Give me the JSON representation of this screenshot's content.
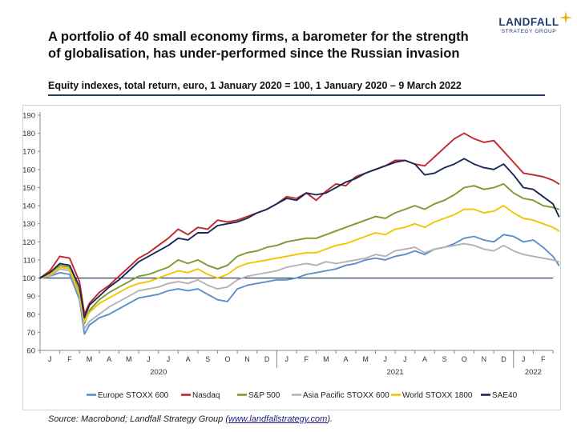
{
  "header": {
    "title": "A portfolio of 40 small economy firms, a barometer for the strength of globalisation, has under-performed since the Russian invasion",
    "subtitle": "Equity indexes, total return, euro, 1 January 2020 = 100, 1 January 2020 – 9 March 2022"
  },
  "logo": {
    "name": "LANDFALL",
    "tagline": "STRATEGY GROUP",
    "accent_color": "#e0b31c",
    "brand_color": "#1f3a6b"
  },
  "footer": {
    "source_prefix": "Source: Macrobond; Landfall Strategy Group (",
    "source_url": "www.landfallstrategy.com",
    "source_suffix": ")."
  },
  "chart_data": {
    "type": "line",
    "title": "Equity indexes, total return, euro, 1 January 2020 = 100",
    "xlabel": "",
    "ylabel": "",
    "ylim": [
      60,
      190
    ],
    "yticks": [
      60,
      70,
      80,
      90,
      100,
      110,
      120,
      130,
      140,
      150,
      160,
      170,
      180,
      190
    ],
    "baseline": 100,
    "grid": false,
    "legend_position": "bottom",
    "x": [
      0,
      0.5,
      1,
      1.5,
      2,
      2.25,
      2.5,
      3,
      3.5,
      4,
      4.5,
      5,
      5.5,
      6,
      6.5,
      7,
      7.5,
      8,
      8.5,
      9,
      9.5,
      10,
      10.5,
      11,
      11.5,
      12,
      12.5,
      13,
      13.5,
      14,
      14.5,
      15,
      15.5,
      16,
      16.5,
      17,
      17.5,
      18,
      18.5,
      19,
      19.5,
      20,
      20.5,
      21,
      21.5,
      22,
      22.5,
      23,
      23.5,
      24,
      24.5,
      25,
      25.5,
      26,
      26.3
    ],
    "x_months": [
      "J",
      "F",
      "M",
      "A",
      "M",
      "J",
      "J",
      "A",
      "S",
      "O",
      "N",
      "D",
      "J",
      "F",
      "M",
      "A",
      "M",
      "J",
      "J",
      "A",
      "S",
      "O",
      "N",
      "D",
      "J",
      "F"
    ],
    "x_years": [
      {
        "label": "2020",
        "at": 6
      },
      {
        "label": "2021",
        "at": 18
      },
      {
        "label": "2022",
        "at": 25
      }
    ],
    "series": [
      {
        "name": "Europe STOXX 600",
        "color": "#5b8fc9",
        "values": [
          100,
          101,
          103,
          102,
          88,
          69,
          74,
          78,
          80,
          83,
          86,
          89,
          90,
          91,
          93,
          94,
          93,
          94,
          91,
          88,
          87,
          94,
          96,
          97,
          98,
          99,
          99,
          100,
          102,
          103,
          104,
          105,
          107,
          108,
          110,
          111,
          110,
          112,
          113,
          115,
          113,
          116,
          117,
          119,
          122,
          123,
          121,
          120,
          124,
          123,
          120,
          121,
          117,
          112,
          107
        ]
      },
      {
        "name": "Nasdaq",
        "color": "#c0272d",
        "values": [
          100,
          104,
          112,
          111,
          98,
          80,
          86,
          92,
          96,
          101,
          106,
          111,
          114,
          118,
          122,
          127,
          124,
          128,
          127,
          132,
          131,
          132,
          134,
          136,
          138,
          141,
          145,
          144,
          147,
          143,
          148,
          152,
          151,
          156,
          158,
          160,
          162,
          165,
          165,
          163,
          162,
          167,
          172,
          177,
          180,
          177,
          175,
          176,
          170,
          164,
          158,
          157,
          156,
          154,
          152
        ]
      },
      {
        "name": "S&P 500",
        "color": "#7a9a2e",
        "values": [
          100,
          102,
          107,
          106,
          92,
          75,
          82,
          88,
          92,
          95,
          98,
          101,
          102,
          104,
          106,
          110,
          108,
          110,
          107,
          105,
          107,
          112,
          114,
          115,
          117,
          118,
          120,
          121,
          122,
          122,
          124,
          126,
          128,
          130,
          132,
          134,
          133,
          136,
          138,
          140,
          138,
          141,
          143,
          146,
          150,
          151,
          149,
          150,
          152,
          147,
          144,
          143,
          140,
          139,
          138
        ]
      },
      {
        "name": "Asia Pacific STOXX 600",
        "color": "#b3b3b3",
        "values": [
          100,
          101,
          105,
          104,
          90,
          72,
          76,
          80,
          84,
          87,
          90,
          93,
          94,
          95,
          97,
          98,
          97,
          99,
          96,
          94,
          95,
          99,
          101,
          102,
          103,
          104,
          106,
          107,
          108,
          107,
          109,
          108,
          109,
          110,
          111,
          113,
          112,
          115,
          116,
          117,
          114,
          116,
          117,
          118,
          119,
          118,
          116,
          115,
          118,
          115,
          113,
          112,
          111,
          110,
          109
        ]
      },
      {
        "name": "World STOXX 1800",
        "color": "#f2c500",
        "values": [
          100,
          102,
          106,
          105,
          91,
          76,
          81,
          86,
          89,
          92,
          95,
          97,
          98,
          100,
          102,
          104,
          103,
          105,
          102,
          100,
          102,
          106,
          108,
          109,
          110,
          111,
          112,
          113,
          114,
          114,
          116,
          118,
          119,
          121,
          123,
          125,
          124,
          127,
          128,
          130,
          128,
          131,
          133,
          135,
          138,
          138,
          136,
          137,
          140,
          136,
          133,
          132,
          130,
          128,
          126
        ]
      },
      {
        "name": "SAE40",
        "color": "#1a2858",
        "values": [
          100,
          103,
          108,
          107,
          95,
          78,
          85,
          90,
          95,
          99,
          104,
          109,
          112,
          115,
          118,
          122,
          121,
          125,
          125,
          129,
          130,
          131,
          133,
          136,
          138,
          141,
          144,
          143,
          147,
          146,
          147,
          150,
          153,
          155,
          158,
          160,
          162,
          164,
          165,
          163,
          157,
          158,
          161,
          163,
          166,
          163,
          161,
          160,
          163,
          157,
          150,
          149,
          145,
          141,
          134
        ]
      }
    ]
  }
}
